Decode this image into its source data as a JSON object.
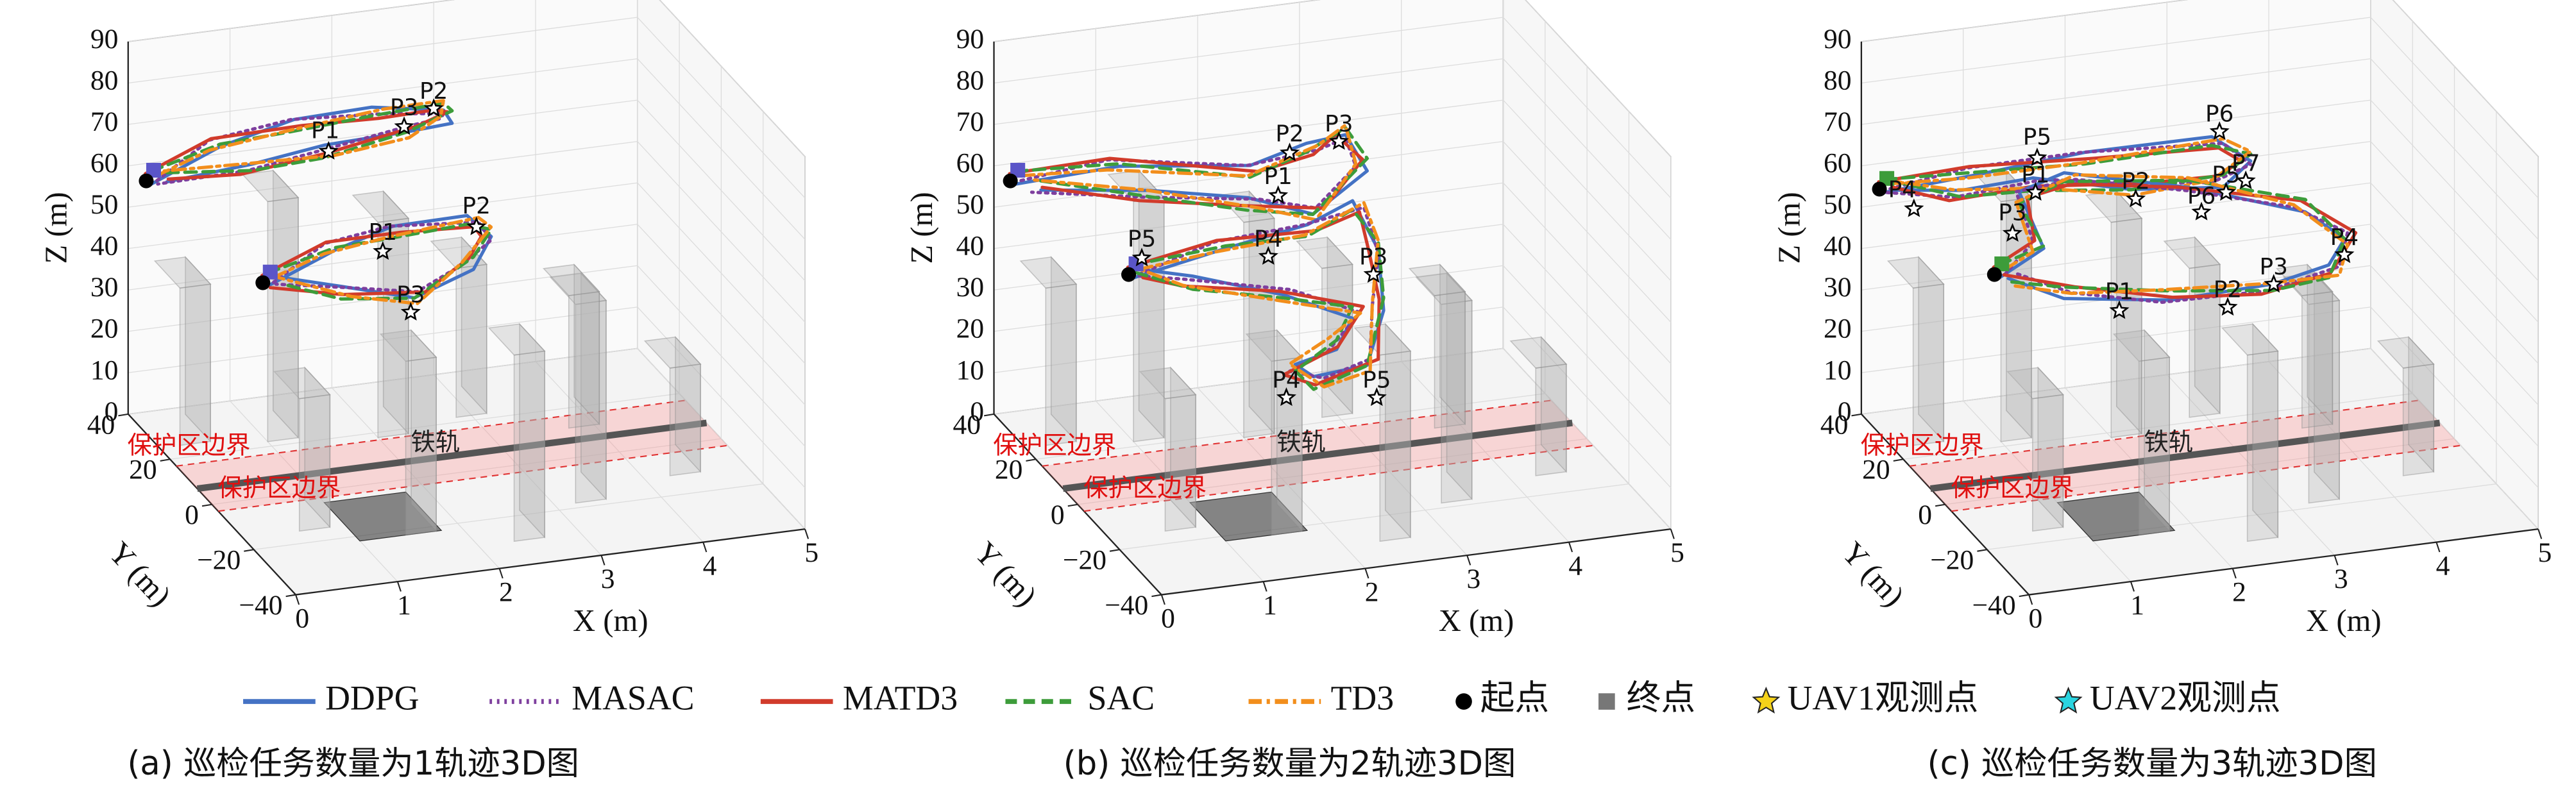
{
  "chart_data": [
    {
      "type": "line3d",
      "xlabel": "X (m)",
      "ylabel": "Y (m)",
      "zlabel": "Z (m)",
      "xlim": [
        0,
        5
      ],
      "ylim": [
        -40,
        40
      ],
      "zlim": [
        0,
        90
      ],
      "xticks": [
        0,
        1,
        2,
        3,
        4,
        5
      ],
      "yticks": [
        40,
        20,
        0,
        {
          "value": -20,
          "label": "−20"
        },
        {
          "value": -40,
          "label": "−40"
        }
      ],
      "zticks": [
        0,
        10,
        20,
        30,
        40,
        50,
        60,
        70,
        80,
        90
      ],
      "annotations": [
        "保护区边界",
        "保护区边界",
        "铁轨"
      ],
      "point_labels": [
        "P1",
        "P3",
        "P2",
        "P1",
        "P2",
        "P3"
      ],
      "caption": "(a) 巡检任务数量为1轨迹3D图"
    },
    {
      "type": "line3d",
      "xlabel": "X (m)",
      "ylabel": "Y (m)",
      "zlabel": "Z (m)",
      "xlim": [
        0,
        5
      ],
      "ylim": [
        -40,
        40
      ],
      "zlim": [
        0,
        90
      ],
      "xticks": [
        0,
        1,
        2,
        3,
        4,
        5
      ],
      "yticks": [
        40,
        20,
        0,
        {
          "value": -20,
          "label": "−20"
        },
        {
          "value": -40,
          "label": "−40"
        }
      ],
      "zticks": [
        0,
        10,
        20,
        30,
        40,
        50,
        60,
        70,
        80,
        90
      ],
      "annotations": [
        "保护区边界",
        "保护区边界",
        "铁轨"
      ],
      "point_labels": [
        "P2",
        "P3",
        "P1",
        "P4",
        "P5",
        "P3",
        "P4",
        "P5"
      ],
      "caption": "(b) 巡检任务数量为2轨迹3D图"
    },
    {
      "type": "line3d",
      "xlabel": "X (m)",
      "ylabel": "Y (m)",
      "zlabel": "Z (m)",
      "xlim": [
        0,
        5
      ],
      "ylim": [
        -40,
        40
      ],
      "zlim": [
        0,
        90
      ],
      "xticks": [
        0,
        1,
        2,
        3,
        4,
        5
      ],
      "yticks": [
        40,
        20,
        0,
        {
          "value": -20,
          "label": "−20"
        },
        {
          "value": -40,
          "label": "−40"
        }
      ],
      "zticks": [
        0,
        10,
        20,
        30,
        40,
        50,
        60,
        70,
        80,
        90
      ],
      "annotations": [
        "保护区边界",
        "保护区边界",
        "铁轨"
      ],
      "point_labels": [
        "P6",
        "P5",
        "P7",
        "P1",
        "P2",
        "P5",
        "P6",
        "P4",
        "P3",
        "P4",
        "P1",
        "P2",
        "P3"
      ],
      "caption": "(c) 巡检任务数量为3轨迹3D图"
    }
  ],
  "legend": [
    {
      "name": "DDPG",
      "color": "#4472c4",
      "style": "solid"
    },
    {
      "name": "MASAC",
      "color": "#7e3f9e",
      "style": "dotted"
    },
    {
      "name": "MATD3",
      "color": "#d13b2b",
      "style": "solid"
    },
    {
      "name": "SAC",
      "color": "#3d9c3a",
      "style": "dashed"
    },
    {
      "name": "TD3",
      "color": "#f28e1c",
      "style": "dashdot"
    },
    {
      "name": "起点",
      "color": "#000000",
      "style": "circle"
    },
    {
      "name": "终点",
      "color": "#777777",
      "style": "square"
    },
    {
      "name": "UAV1观测点",
      "color": "#f5d21a",
      "style": "star"
    },
    {
      "name": "UAV2观测点",
      "color": "#2ad4e0",
      "style": "star"
    }
  ]
}
